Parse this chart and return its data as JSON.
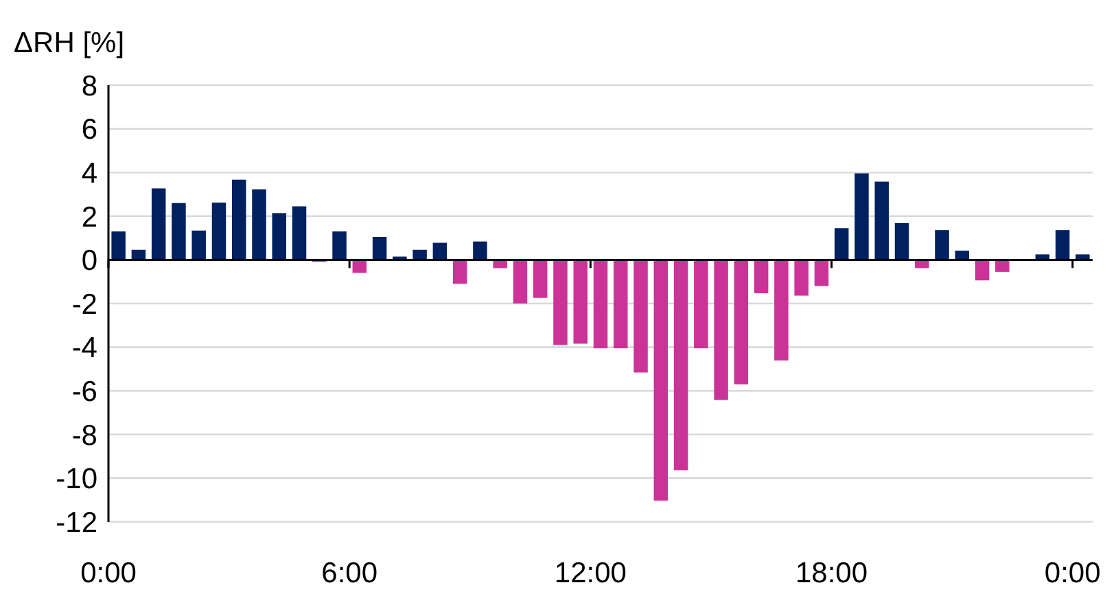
{
  "chart_data": {
    "type": "bar",
    "ylabel": "ΔRH [%]",
    "x": [
      0.25,
      0.75,
      1.25,
      1.75,
      2.25,
      2.75,
      3.25,
      3.75,
      4.25,
      4.75,
      5.25,
      5.75,
      6.25,
      6.75,
      7.25,
      7.75,
      8.25,
      8.75,
      9.25,
      9.75,
      10.25,
      10.75,
      11.25,
      11.75,
      12.25,
      12.75,
      13.25,
      13.75,
      14.25,
      14.75,
      15.25,
      15.75,
      16.25,
      16.75,
      17.25,
      17.75,
      18.25,
      18.75,
      19.25,
      19.75,
      20.25,
      20.75,
      21.25,
      21.75,
      22.25,
      22.75,
      23.25,
      23.75,
      24.25
    ],
    "values": [
      1.3,
      0.46,
      3.27,
      2.6,
      1.34,
      2.62,
      3.67,
      3.23,
      2.14,
      2.45,
      -0.1,
      1.3,
      -0.6,
      1.05,
      0.15,
      0.46,
      0.78,
      -1.1,
      0.84,
      -0.38,
      -2.0,
      -1.74,
      -3.9,
      -3.84,
      -4.05,
      -4.05,
      -5.16,
      -11.03,
      -9.64,
      -4.05,
      -6.42,
      -5.7,
      -1.53,
      -4.61,
      -1.64,
      -1.2,
      1.45,
      3.96,
      3.58,
      1.68,
      -0.38,
      1.36,
      0.42,
      -0.94,
      -0.55,
      0,
      0.25,
      1.36,
      0.25
    ],
    "colors": [
      "#002060",
      "#002060",
      "#002060",
      "#002060",
      "#002060",
      "#002060",
      "#002060",
      "#002060",
      "#002060",
      "#002060",
      "#cc3399",
      "#002060",
      "#cc3399",
      "#002060",
      "#002060",
      "#002060",
      "#002060",
      "#cc3399",
      "#002060",
      "#cc3399",
      "#cc3399",
      "#cc3399",
      "#cc3399",
      "#cc3399",
      "#cc3399",
      "#cc3399",
      "#cc3399",
      "#cc3399",
      "#cc3399",
      "#cc3399",
      "#cc3399",
      "#cc3399",
      "#cc3399",
      "#cc3399",
      "#cc3399",
      "#cc3399",
      "#002060",
      "#002060",
      "#002060",
      "#002060",
      "#cc3399",
      "#002060",
      "#002060",
      "#cc3399",
      "#cc3399",
      "#002060",
      "#002060",
      "#002060",
      "#002060"
    ],
    "xlim": [
      0,
      24.5
    ],
    "xticks": [
      {
        "value": 0,
        "label": "0:00"
      },
      {
        "value": 6,
        "label": "6:00"
      },
      {
        "value": 12,
        "label": "12:00"
      },
      {
        "value": 18,
        "label": "18:00"
      },
      {
        "value": 24,
        "label": "0:00"
      }
    ],
    "ylim": [
      -12,
      8
    ],
    "yticks": [
      -12,
      -10,
      -8,
      -6,
      -4,
      -2,
      0,
      2,
      4,
      6,
      8
    ],
    "grid": "y"
  }
}
